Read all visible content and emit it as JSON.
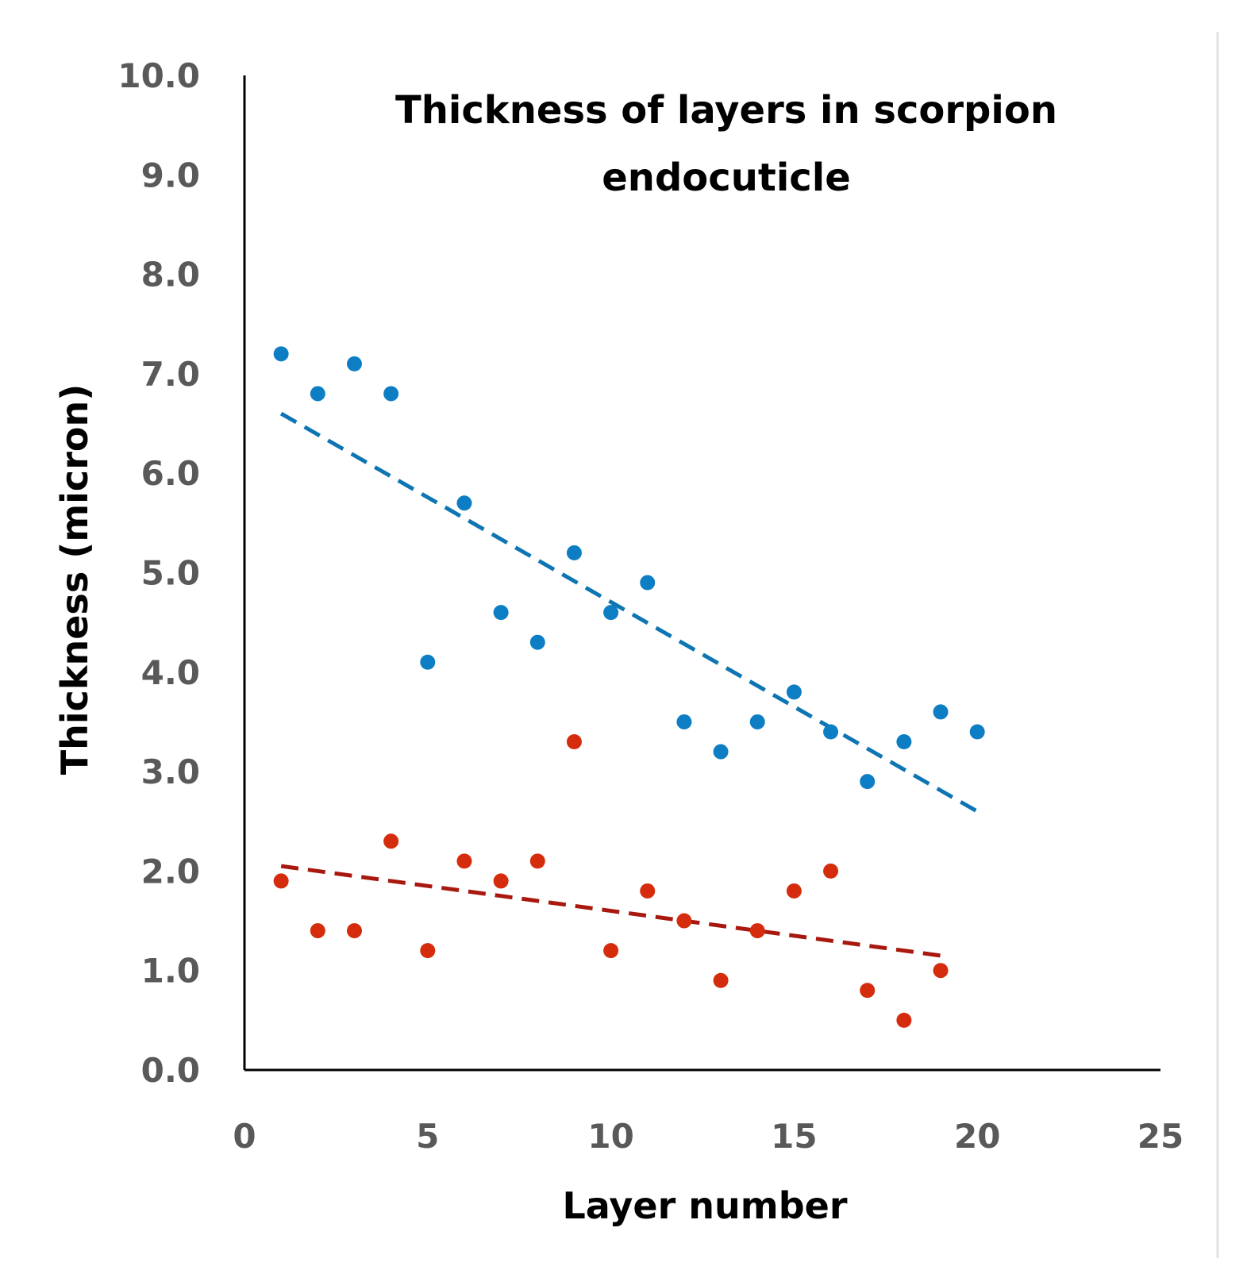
{
  "chart_data": {
    "type": "scatter",
    "title_lines": [
      "Thickness of layers in scorpion",
      "endocuticle"
    ],
    "xlabel": "Layer number",
    "ylabel": "Thickness (micron)",
    "xlim": [
      0,
      25
    ],
    "ylim": [
      0,
      10
    ],
    "x_ticks": [
      "0",
      "5",
      "10",
      "15",
      "20",
      "25"
    ],
    "y_ticks": [
      "0.0",
      "1.0",
      "2.0",
      "3.0",
      "4.0",
      "5.0",
      "6.0",
      "7.0",
      "8.0",
      "9.0",
      "10.0"
    ],
    "grid": false,
    "legend": "none",
    "series": [
      {
        "color": "#0e7ec4",
        "points": [
          [
            1,
            7.2
          ],
          [
            2,
            6.8
          ],
          [
            3,
            7.1
          ],
          [
            4,
            6.8
          ],
          [
            5,
            4.1
          ],
          [
            6,
            5.7
          ],
          [
            7,
            4.6
          ],
          [
            8,
            4.3
          ],
          [
            9,
            5.2
          ],
          [
            10,
            4.6
          ],
          [
            11,
            4.9
          ],
          [
            12,
            3.5
          ],
          [
            13,
            3.2
          ],
          [
            14,
            3.5
          ],
          [
            15,
            3.8
          ],
          [
            16,
            3.4
          ],
          [
            17,
            2.9
          ],
          [
            18,
            3.3
          ],
          [
            19,
            3.6
          ],
          [
            20,
            3.4
          ]
        ],
        "trendline": {
          "style": "dashed",
          "color": "#0e75b3",
          "from": [
            1,
            6.6
          ],
          "to": [
            20,
            2.6
          ]
        }
      },
      {
        "color": "#d42c0c",
        "points": [
          [
            1,
            1.9
          ],
          [
            2,
            1.4
          ],
          [
            3,
            1.4
          ],
          [
            4,
            2.3
          ],
          [
            5,
            1.2
          ],
          [
            6,
            2.1
          ],
          [
            7,
            1.9
          ],
          [
            8,
            2.1
          ],
          [
            9,
            3.3
          ],
          [
            10,
            1.2
          ],
          [
            11,
            1.8
          ],
          [
            12,
            1.5
          ],
          [
            13,
            0.9
          ],
          [
            14,
            1.4
          ],
          [
            15,
            1.8
          ],
          [
            16,
            2.0
          ],
          [
            17,
            0.8
          ],
          [
            18,
            0.5
          ],
          [
            19,
            1.0
          ]
        ],
        "trendline": {
          "style": "dashed",
          "color": "#a8180e",
          "from": [
            1,
            2.05
          ],
          "to": [
            19,
            1.15
          ]
        }
      }
    ]
  }
}
